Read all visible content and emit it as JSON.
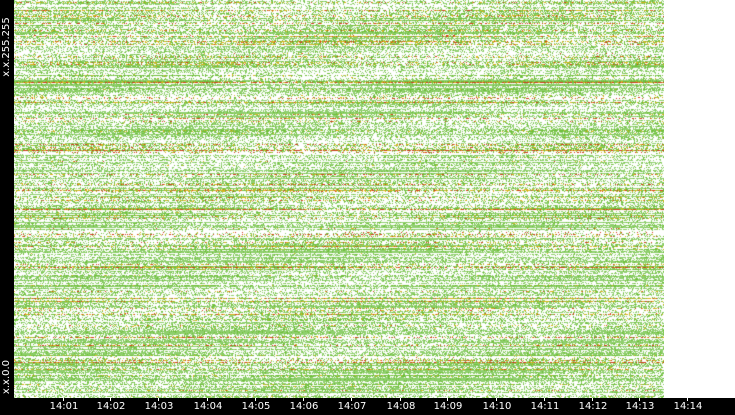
{
  "chart_data": {
    "type": "heatmap",
    "title": "",
    "xlabel": "",
    "ylabel": "",
    "y_labels": [
      "x.x.0.0",
      "x.x.255.255"
    ],
    "x_ticks": [
      "14:01",
      "14:02",
      "14:03",
      "14:04",
      "14:05",
      "14:06",
      "14:07",
      "14:08",
      "14:09",
      "14:10",
      "14:11",
      "14:12",
      "14:13",
      "14:14"
    ],
    "x_range": [
      "14:00",
      "14:14"
    ],
    "y_range": [
      "x.x.0.0",
      "x.x.255.255"
    ],
    "grid": false,
    "legend": "none",
    "colors": {
      "background": "#ffffff",
      "axis_background": "#000000",
      "axis_text": "#ffffff",
      "low": "#8fcf6e",
      "medium": "#6fbf3a",
      "high": "#d9b21a",
      "very_high": "#d03a1a"
    }
  }
}
